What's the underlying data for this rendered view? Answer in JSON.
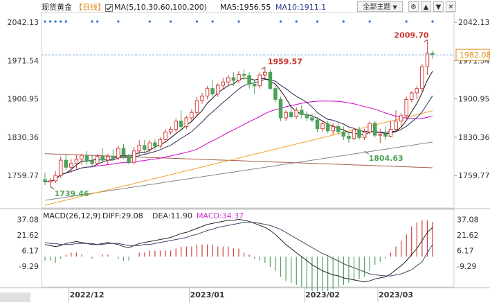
{
  "header": {
    "instrument": "现货黄金",
    "period": "【日线】",
    "ma_params": "MA(5,10,30,60,100,200)",
    "ma5": "MA5:1956.55",
    "ma10": "MA10:1911.1",
    "theme_button": "全部主题"
  },
  "colors": {
    "candle_up": "#d23c3c",
    "candle_down": "#4ea25a",
    "ma5": "#111111",
    "ma10": "#2d2d5a",
    "ma30": "#d400c8",
    "ma60": "#f0a020",
    "ma100": "#888888",
    "ma200": "#a65a4c",
    "current_price": "#e08a1c",
    "dots": "#2e6fd0",
    "macd_diff": "#222222",
    "macd_dea": "#444466",
    "macd_label": "#cc33cc",
    "hist_up": "#d23c3c",
    "hist_down": "#4ea25a"
  },
  "macd_header": {
    "params": "MACD(26,12,9)",
    "diff": "DIFF:29.08",
    "dea": "DEA:11.90",
    "macd": "MACD:34.37"
  },
  "chart_data": [
    {
      "type": "candlestick",
      "title": "现货黄金 日线",
      "y_axis_ticks": [
        "2042.13",
        "1971.54",
        "1900.95",
        "1830.36",
        "1759.77"
      ],
      "ylim": [
        1700,
        2055
      ],
      "x_ticks": [
        "2022/12",
        "2023/01",
        "2023/02",
        "2023/03"
      ],
      "current_price": "1982.08",
      "annotations": [
        {
          "text": "2009.70",
          "kind": "high"
        },
        {
          "text": "1959.57",
          "kind": "high"
        },
        {
          "text": "1804.63",
          "kind": "low"
        },
        {
          "text": "1739.46",
          "kind": "low"
        }
      ],
      "candles": [
        [
          1752,
          1765,
          1742,
          1748
        ],
        [
          1748,
          1755,
          1739.46,
          1750
        ],
        [
          1750,
          1768,
          1746,
          1760
        ],
        [
          1760,
          1795,
          1755,
          1788
        ],
        [
          1788,
          1800,
          1770,
          1775
        ],
        [
          1775,
          1790,
          1765,
          1782
        ],
        [
          1782,
          1798,
          1772,
          1790
        ],
        [
          1790,
          1800,
          1780,
          1797
        ],
        [
          1797,
          1805,
          1780,
          1787
        ],
        [
          1787,
          1798,
          1775,
          1782
        ],
        [
          1782,
          1800,
          1778,
          1795
        ],
        [
          1795,
          1810,
          1785,
          1788
        ],
        [
          1788,
          1800,
          1780,
          1795
        ],
        [
          1795,
          1808,
          1789,
          1792
        ],
        [
          1792,
          1815,
          1788,
          1810
        ],
        [
          1810,
          1818,
          1790,
          1797
        ],
        [
          1797,
          1800,
          1780,
          1784
        ],
        [
          1784,
          1812,
          1780,
          1805
        ],
        [
          1805,
          1825,
          1798,
          1815
        ],
        [
          1815,
          1825,
          1800,
          1808
        ],
        [
          1808,
          1825,
          1802,
          1820
        ],
        [
          1820,
          1826,
          1808,
          1814
        ],
        [
          1814,
          1830,
          1810,
          1826
        ],
        [
          1826,
          1845,
          1820,
          1840
        ],
        [
          1840,
          1850,
          1835,
          1845
        ],
        [
          1845,
          1865,
          1840,
          1860
        ],
        [
          1860,
          1880,
          1845,
          1850
        ],
        [
          1850,
          1870,
          1845,
          1866
        ],
        [
          1866,
          1882,
          1860,
          1876
        ],
        [
          1876,
          1905,
          1870,
          1898
        ],
        [
          1898,
          1912,
          1892,
          1906
        ],
        [
          1906,
          1925,
          1900,
          1920
        ],
        [
          1920,
          1935,
          1905,
          1910
        ],
        [
          1910,
          1930,
          1905,
          1926
        ],
        [
          1926,
          1940,
          1918,
          1932
        ],
        [
          1932,
          1945,
          1925,
          1940
        ],
        [
          1940,
          1950,
          1925,
          1935
        ],
        [
          1935,
          1952,
          1930,
          1946
        ],
        [
          1946,
          1955,
          1936,
          1944
        ],
        [
          1944,
          1950,
          1920,
          1928
        ],
        [
          1928,
          1935,
          1910,
          1925
        ],
        [
          1925,
          1950,
          1920,
          1945
        ],
        [
          1945,
          1959.57,
          1938,
          1950
        ],
        [
          1950,
          1955,
          1918,
          1920
        ],
        [
          1920,
          1925,
          1895,
          1900
        ],
        [
          1900,
          1905,
          1860,
          1866
        ],
        [
          1866,
          1880,
          1860,
          1876
        ],
        [
          1876,
          1885,
          1865,
          1868
        ],
        [
          1868,
          1885,
          1864,
          1880
        ],
        [
          1880,
          1890,
          1866,
          1872
        ],
        [
          1872,
          1878,
          1860,
          1866
        ],
        [
          1866,
          1874,
          1858,
          1862
        ],
        [
          1862,
          1868,
          1840,
          1846
        ],
        [
          1846,
          1860,
          1840,
          1855
        ],
        [
          1855,
          1860,
          1838,
          1842
        ],
        [
          1842,
          1856,
          1835,
          1850
        ],
        [
          1850,
          1856,
          1835,
          1840
        ],
        [
          1840,
          1850,
          1825,
          1832
        ],
        [
          1832,
          1840,
          1820,
          1828
        ],
        [
          1828,
          1848,
          1825,
          1844
        ],
        [
          1844,
          1850,
          1826,
          1830
        ],
        [
          1830,
          1846,
          1825,
          1840
        ],
        [
          1840,
          1860,
          1835,
          1856
        ],
        [
          1856,
          1860,
          1830,
          1834
        ],
        [
          1834,
          1845,
          1820,
          1836
        ],
        [
          1836,
          1850,
          1825,
          1832
        ],
        [
          1832,
          1860,
          1830,
          1845
        ],
        [
          1845,
          1880,
          1840,
          1860
        ],
        [
          1860,
          1875,
          1850,
          1870
        ],
        [
          1870,
          1905,
          1866,
          1900
        ],
        [
          1900,
          1915,
          1895,
          1912
        ],
        [
          1912,
          1925,
          1900,
          1920
        ],
        [
          1920,
          1965,
          1915,
          1960
        ],
        [
          1960,
          2009.7,
          1945,
          1985
        ],
        [
          1985,
          1990,
          1975,
          1982.08
        ]
      ]
    },
    {
      "type": "line",
      "title": "MACD(26,12,9)",
      "y_axis_ticks": [
        "37.08",
        "21.62",
        "6.17",
        "-9.29"
      ],
      "ylim": [
        -30,
        40
      ],
      "series": [
        {
          "name": "DIFF",
          "values": [
            12,
            11,
            10,
            11,
            13,
            14,
            15,
            14,
            13,
            12,
            12,
            13,
            14,
            13,
            12,
            10,
            9,
            11,
            13,
            14,
            15,
            16,
            17,
            18,
            19,
            21,
            23,
            24,
            26,
            28,
            30,
            32,
            33,
            34,
            35,
            36,
            36,
            37,
            36,
            35,
            33,
            31,
            29,
            26,
            22,
            17,
            12,
            8,
            4,
            0,
            -4,
            -8,
            -11,
            -14,
            -16,
            -18,
            -19,
            -21,
            -22,
            -23,
            -24,
            -25,
            -24,
            -22,
            -21,
            -20,
            -17,
            -13,
            -9,
            -4,
            2,
            8,
            16,
            24,
            29.08
          ]
        },
        {
          "name": "DEA",
          "values": [
            14,
            13,
            13,
            12,
            12,
            12,
            13,
            13,
            13,
            13,
            12,
            12,
            13,
            13,
            13,
            12,
            11,
            11,
            11,
            12,
            12,
            13,
            14,
            15,
            16,
            17,
            18,
            19,
            21,
            22,
            24,
            26,
            27,
            29,
            30,
            31,
            32,
            33,
            34,
            34,
            34,
            33,
            32,
            31,
            29,
            27,
            24,
            21,
            18,
            15,
            12,
            9,
            6,
            3,
            1,
            -2,
            -4,
            -7,
            -9,
            -11,
            -13,
            -15,
            -17,
            -18,
            -18.5,
            -19,
            -19,
            -18,
            -17,
            -15,
            -13,
            -9,
            -5,
            4,
            11.9
          ]
        },
        {
          "name": "MACD",
          "values": [
            -4,
            -4,
            -6,
            -2,
            2,
            4,
            4,
            2,
            0,
            -2,
            0,
            2,
            2,
            0,
            -2,
            -4,
            -4,
            0,
            4,
            4,
            6,
            6,
            6,
            6,
            6,
            8,
            10,
            10,
            10,
            12,
            12,
            12,
            12,
            10,
            10,
            10,
            8,
            8,
            4,
            2,
            -2,
            -4,
            -6,
            -10,
            -14,
            -20,
            -24,
            -26,
            -28,
            -30,
            -32,
            -34,
            -34,
            -34,
            -34,
            -32,
            -30,
            -28,
            -26,
            -24,
            -22,
            -20,
            -14,
            -8,
            -5,
            -2,
            4,
            10,
            16,
            22,
            30,
            34,
            36,
            36,
            34.37
          ]
        }
      ],
      "x_ticks": [
        "2022/12",
        "2023/01",
        "2023/02",
        "2023/03"
      ]
    }
  ]
}
